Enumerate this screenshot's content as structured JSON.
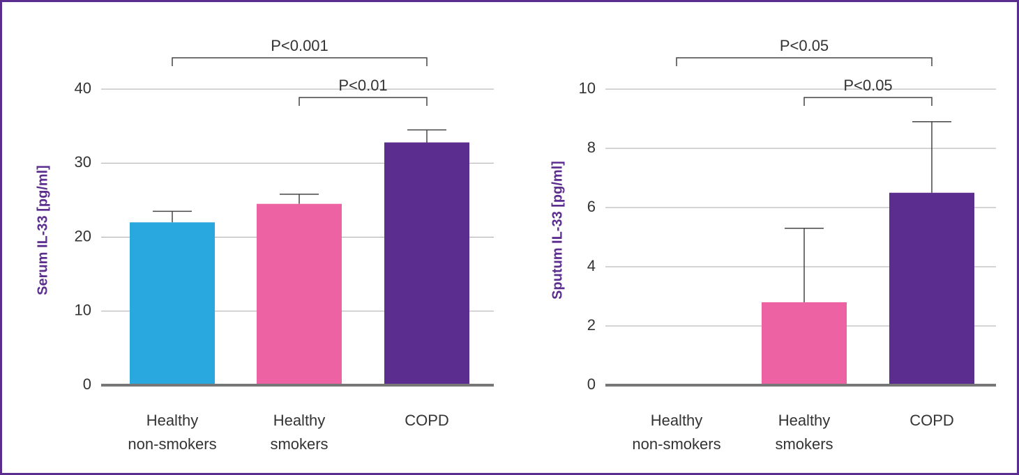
{
  "chart_data": [
    {
      "type": "bar",
      "ylabel": "Serum IL-33 [pg/ml]",
      "categories": [
        [
          "Healthy",
          "non-smokers"
        ],
        [
          "Healthy",
          "smokers"
        ],
        [
          "COPD"
        ]
      ],
      "values": [
        22.0,
        24.5,
        32.8
      ],
      "errors": [
        1.5,
        1.3,
        1.7
      ],
      "colors": [
        "#29a8e0",
        "#ec62a3",
        "#5b2d8e"
      ],
      "ylim": [
        0,
        40
      ],
      "yticks": [
        0,
        10,
        20,
        30,
        40
      ],
      "grid": true,
      "annotations": [
        {
          "text": "P<0.001",
          "from": 0,
          "to": 2
        },
        {
          "text": "P<0.01",
          "from": 1,
          "to": 2
        }
      ]
    },
    {
      "type": "bar",
      "ylabel": "Sputum IL-33 [pg/ml]",
      "categories": [
        [
          "Healthy",
          "non-smokers"
        ],
        [
          "Healthy",
          "smokers"
        ],
        [
          "COPD"
        ]
      ],
      "values": [
        0,
        2.8,
        6.5
      ],
      "errors": [
        0,
        2.5,
        2.4
      ],
      "colors": [
        "#29a8e0",
        "#ec62a3",
        "#5b2d8e"
      ],
      "ylim": [
        0,
        10
      ],
      "yticks": [
        0,
        2,
        4,
        6,
        8,
        10
      ],
      "grid": true,
      "annotations": [
        {
          "text": "P<0.05",
          "from": 0,
          "to": 2
        },
        {
          "text": "P<0.05",
          "from": 1,
          "to": 2
        }
      ]
    }
  ]
}
